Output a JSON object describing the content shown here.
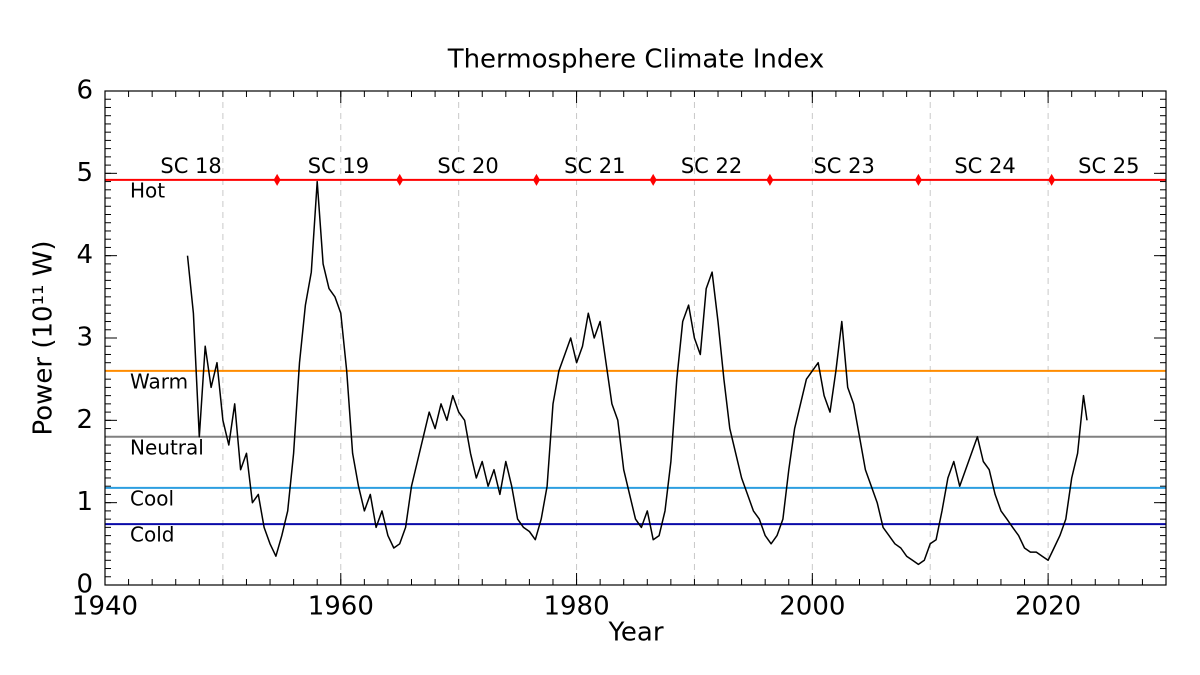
{
  "chart_data": {
    "type": "line",
    "title": "Thermosphere Climate Index",
    "xlabel": "Year",
    "ylabel": "Power (10¹¹ W)",
    "xlim": [
      1940,
      2030
    ],
    "xticks": [
      1940,
      1960,
      1980,
      2000,
      2020
    ],
    "xgrid": [
      1950,
      1960,
      1970,
      1980,
      1990,
      2000,
      2010,
      2020
    ],
    "ylim": [
      0,
      6
    ],
    "yticks": [
      0,
      1,
      2,
      3,
      4,
      5,
      6
    ],
    "color": "#000000",
    "x": [
      1947.0,
      1947.5,
      1948.0,
      1948.5,
      1949.0,
      1949.5,
      1950.0,
      1950.5,
      1951.0,
      1951.5,
      1952.0,
      1952.5,
      1953.0,
      1953.5,
      1954.0,
      1954.5,
      1955.0,
      1955.5,
      1956.0,
      1956.5,
      1957.0,
      1957.5,
      1958.0,
      1958.5,
      1959.0,
      1959.5,
      1960.0,
      1960.5,
      1961.0,
      1961.5,
      1962.0,
      1962.5,
      1963.0,
      1963.5,
      1964.0,
      1964.5,
      1965.0,
      1965.5,
      1966.0,
      1966.5,
      1967.0,
      1967.5,
      1968.0,
      1968.5,
      1969.0,
      1969.5,
      1970.0,
      1970.5,
      1971.0,
      1971.5,
      1972.0,
      1972.5,
      1973.0,
      1973.5,
      1974.0,
      1974.5,
      1975.0,
      1975.5,
      1976.0,
      1976.5,
      1977.0,
      1977.5,
      1978.0,
      1978.5,
      1979.0,
      1979.5,
      1980.0,
      1980.5,
      1981.0,
      1981.5,
      1982.0,
      1982.5,
      1983.0,
      1983.5,
      1984.0,
      1984.5,
      1985.0,
      1985.5,
      1986.0,
      1986.5,
      1987.0,
      1987.5,
      1988.0,
      1988.5,
      1989.0,
      1989.5,
      1990.0,
      1990.5,
      1991.0,
      1991.5,
      1992.0,
      1992.5,
      1993.0,
      1993.5,
      1994.0,
      1994.5,
      1995.0,
      1995.5,
      1996.0,
      1996.5,
      1997.0,
      1997.5,
      1998.0,
      1998.5,
      1999.0,
      1999.5,
      2000.0,
      2000.5,
      2001.0,
      2001.5,
      2002.0,
      2002.5,
      2003.0,
      2003.5,
      2004.0,
      2004.5,
      2005.0,
      2005.5,
      2006.0,
      2006.5,
      2007.0,
      2007.5,
      2008.0,
      2008.5,
      2009.0,
      2009.5,
      2010.0,
      2010.5,
      2011.0,
      2011.5,
      2012.0,
      2012.5,
      2013.0,
      2013.5,
      2014.0,
      2014.5,
      2015.0,
      2015.5,
      2016.0,
      2016.5,
      2017.0,
      2017.5,
      2018.0,
      2018.5,
      2019.0,
      2019.5,
      2020.0,
      2020.5,
      2021.0,
      2021.5,
      2022.0,
      2022.5,
      2023.0,
      2023.3
    ],
    "values": [
      4.0,
      3.3,
      1.8,
      2.9,
      2.4,
      2.7,
      2.0,
      1.7,
      2.2,
      1.4,
      1.6,
      1.0,
      1.1,
      0.7,
      0.5,
      0.35,
      0.6,
      0.9,
      1.6,
      2.7,
      3.4,
      3.8,
      4.9,
      3.9,
      3.6,
      3.5,
      3.3,
      2.6,
      1.6,
      1.2,
      0.9,
      1.1,
      0.7,
      0.9,
      0.6,
      0.45,
      0.5,
      0.7,
      1.2,
      1.5,
      1.8,
      2.1,
      1.9,
      2.2,
      2.0,
      2.3,
      2.1,
      2.0,
      1.6,
      1.3,
      1.5,
      1.2,
      1.4,
      1.1,
      1.5,
      1.2,
      0.8,
      0.7,
      0.65,
      0.55,
      0.8,
      1.2,
      2.2,
      2.6,
      2.8,
      3.0,
      2.7,
      2.9,
      3.3,
      3.0,
      3.2,
      2.7,
      2.2,
      2.0,
      1.4,
      1.1,
      0.8,
      0.7,
      0.9,
      0.55,
      0.6,
      0.9,
      1.5,
      2.5,
      3.2,
      3.4,
      3.0,
      2.8,
      3.6,
      3.8,
      3.2,
      2.5,
      1.9,
      1.6,
      1.3,
      1.1,
      0.9,
      0.8,
      0.6,
      0.5,
      0.6,
      0.8,
      1.4,
      1.9,
      2.2,
      2.5,
      2.6,
      2.7,
      2.3,
      2.1,
      2.6,
      3.2,
      2.4,
      2.2,
      1.8,
      1.4,
      1.2,
      1.0,
      0.7,
      0.6,
      0.5,
      0.45,
      0.35,
      0.3,
      0.25,
      0.3,
      0.5,
      0.55,
      0.9,
      1.3,
      1.5,
      1.2,
      1.4,
      1.6,
      1.8,
      1.5,
      1.4,
      1.1,
      0.9,
      0.8,
      0.7,
      0.6,
      0.45,
      0.4,
      0.4,
      0.35,
      0.3,
      0.45,
      0.6,
      0.8,
      1.3,
      1.6,
      2.3,
      2.0
    ],
    "levels": [
      {
        "name": "Hot",
        "value": 4.92,
        "color": "#ff0000"
      },
      {
        "name": "Warm",
        "value": 2.6,
        "color": "#ff8c00"
      },
      {
        "name": "Neutral",
        "value": 1.8,
        "color": "#808080"
      },
      {
        "name": "Cool",
        "value": 1.18,
        "color": "#2c9ee0"
      },
      {
        "name": "Cold",
        "value": 0.74,
        "color": "#0a0aa8"
      }
    ],
    "cycles": {
      "labels": [
        "SC 18",
        "SC 19",
        "SC 20",
        "SC 21",
        "SC 22",
        "SC 23",
        "SC 24",
        "SC 25"
      ],
      "boundaries": [
        1954.6,
        1965.0,
        1976.6,
        1986.5,
        1996.4,
        2009.0,
        2020.3
      ],
      "color": "#ff0000"
    }
  }
}
